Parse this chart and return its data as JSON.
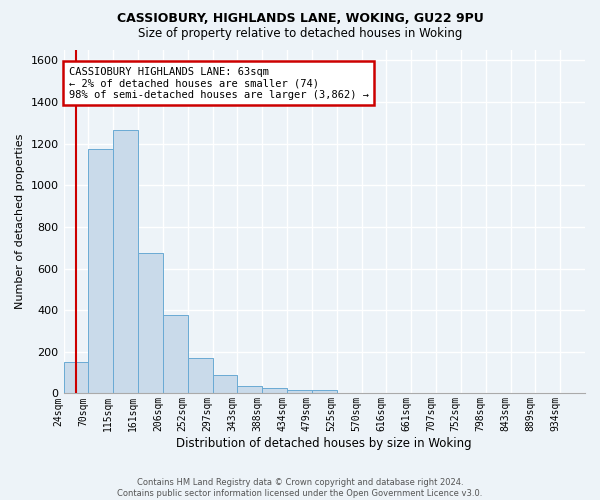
{
  "title1": "CASSIOBURY, HIGHLANDS LANE, WOKING, GU22 9PU",
  "title2": "Size of property relative to detached houses in Woking",
  "xlabel": "Distribution of detached houses by size in Woking",
  "ylabel": "Number of detached properties",
  "bar_color": "#c9daea",
  "bar_edge_color": "#6aaad4",
  "categories": [
    "24sqm",
    "70sqm",
    "115sqm",
    "161sqm",
    "206sqm",
    "252sqm",
    "297sqm",
    "343sqm",
    "388sqm",
    "434sqm",
    "479sqm",
    "525sqm",
    "570sqm",
    "616sqm",
    "661sqm",
    "707sqm",
    "752sqm",
    "798sqm",
    "843sqm",
    "889sqm",
    "934sqm"
  ],
  "bin_values": [
    150,
    1175,
    1265,
    675,
    375,
    170,
    90,
    35,
    25,
    18,
    15,
    0,
    0,
    0,
    0,
    0,
    0,
    0,
    0,
    0
  ],
  "ylim": [
    0,
    1650
  ],
  "yticks": [
    0,
    200,
    400,
    600,
    800,
    1000,
    1200,
    1400,
    1600
  ],
  "property_line_x": 0.5,
  "annotation_text": "CASSIOBURY HIGHLANDS LANE: 63sqm\n← 2% of detached houses are smaller (74)\n98% of semi-detached houses are larger (3,862) →",
  "annotation_box_color": "#ffffff",
  "annotation_border_color": "#cc0000",
  "footer_text": "Contains HM Land Registry data © Crown copyright and database right 2024.\nContains public sector information licensed under the Open Government Licence v3.0.",
  "background_color": "#edf3f8",
  "grid_color": "#ffffff"
}
